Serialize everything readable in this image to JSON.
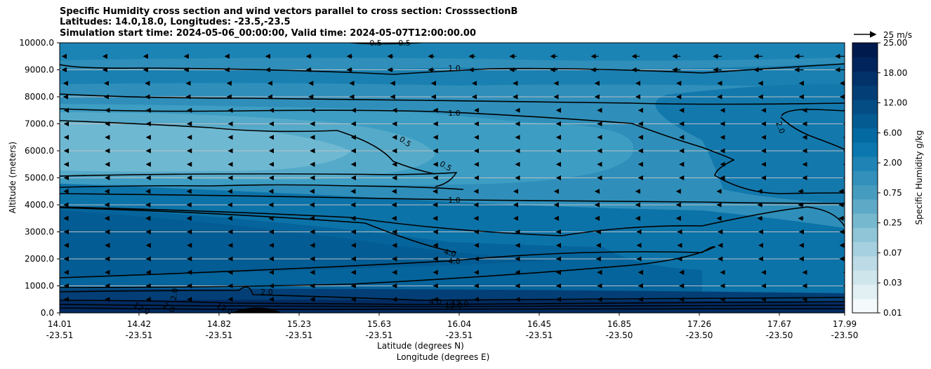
{
  "chart_data": {
    "type": "contour",
    "title_lines": [
      "Specific Humidity cross section and wind vectors parallel to cross section: CrosssectionB",
      "Latitudes: 14.0,18.0, Longitudes: -23.5,-23.5",
      "Simulation start time: 2024-05-06_00:00:00, Valid time: 2024-05-07T12:00:00.00"
    ],
    "ylabel": "Altitude (meters)",
    "xlabel_lat": "Latitude (degrees N)",
    "xlabel_lon": "Longitude (degrees E)",
    "ylim": [
      0,
      10000
    ],
    "y_ticks": [
      "0.0",
      "1000.0",
      "2000.0",
      "3000.0",
      "4000.0",
      "5000.0",
      "6000.0",
      "7000.0",
      "8000.0",
      "9000.0",
      "10000.0"
    ],
    "x_ticks": [
      {
        "lat": "14.01",
        "lon": "-23.51"
      },
      {
        "lat": "14.42",
        "lon": "-23.51"
      },
      {
        "lat": "14.82",
        "lon": "-23.51"
      },
      {
        "lat": "15.23",
        "lon": "-23.51"
      },
      {
        "lat": "15.63",
        "lon": "-23.51"
      },
      {
        "lat": "16.04",
        "lon": "-23.51"
      },
      {
        "lat": "16.45",
        "lon": "-23.51"
      },
      {
        "lat": "16.85",
        "lon": "-23.50"
      },
      {
        "lat": "17.26",
        "lon": "-23.50"
      },
      {
        "lat": "17.67",
        "lon": "-23.50"
      },
      {
        "lat": "17.99",
        "lon": "-23.50"
      }
    ],
    "colorbar": {
      "label": "Specific Humidity g/kg",
      "tick_labels": [
        "0.01",
        "0.03",
        "0.07",
        "0.25",
        "0.75",
        "2.00",
        "6.00",
        "12.00",
        "18.00",
        "25.00"
      ],
      "levels": 19
    },
    "contour_labels": [
      "0.5",
      "0.5",
      "1.0",
      "1.0",
      "0.5",
      "0.5",
      "1.0",
      "4.0",
      "4.0",
      "2.0",
      "2.0",
      "4.0",
      "2.0",
      "12.0",
      "12.0",
      "12.0",
      "12.0",
      "2.0"
    ],
    "quiver_key": "25 m/s"
  },
  "colors": {
    "ramp": [
      "#f4fafb",
      "#e2eff3",
      "#cfe5ec",
      "#bcdbe6",
      "#a6d0df",
      "#8fc5d7",
      "#76b8ce",
      "#5eaac6",
      "#469cbe",
      "#3290bb",
      "#1f84b5",
      "#0b77ae",
      "#0469a0",
      "#035b92",
      "#034d84",
      "#033f76",
      "#03326a",
      "#02245c",
      "#011a4e"
    ]
  }
}
